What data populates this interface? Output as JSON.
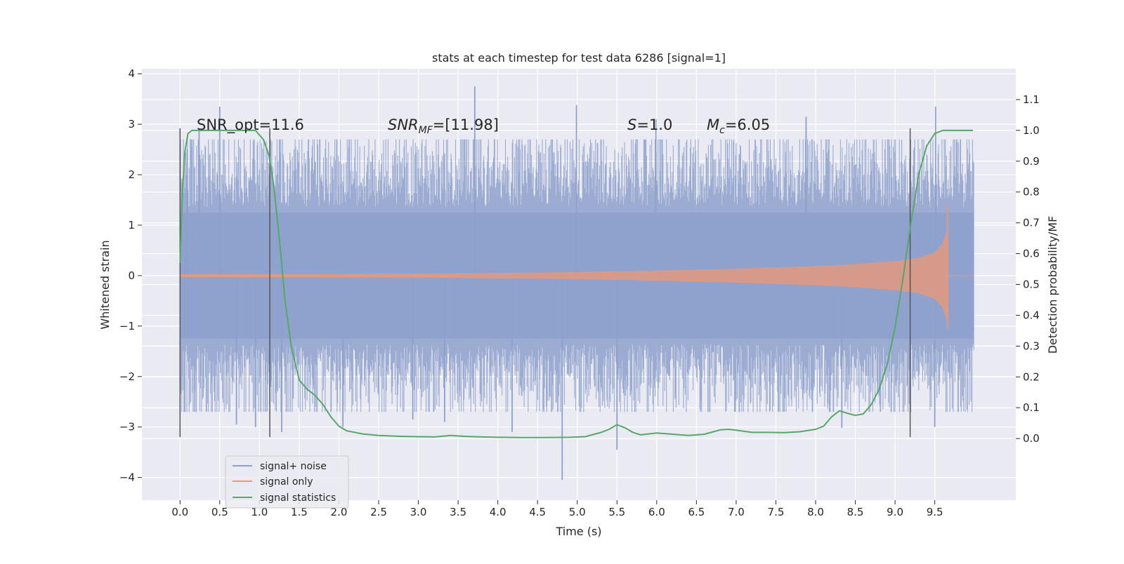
{
  "chart_data": {
    "type": "line",
    "title": "stats at each timestep for test data 6286 [signal=1]",
    "xlabel": "Time (s)",
    "ylabel": "Whitened strain",
    "ylabel_right": "Detection probability/MF",
    "xlim": [
      -0.48,
      10.52
    ],
    "ylim": [
      -4.45,
      4.1
    ],
    "ylim_right": [
      -0.2,
      1.2
    ],
    "grid": true,
    "x_ticks": [
      "0.0",
      "0.5",
      "1.0",
      "1.5",
      "2.0",
      "2.5",
      "3.0",
      "3.5",
      "4.0",
      "4.5",
      "5.0",
      "5.5",
      "6.0",
      "6.5",
      "7.0",
      "7.5",
      "8.0",
      "8.5",
      "9.0",
      "9.5"
    ],
    "y_ticks": [
      "4",
      "3",
      "2",
      "1",
      "0",
      "−1",
      "−2",
      "−3",
      "−4"
    ],
    "y_right_ticks": [
      "1.1",
      "1.0",
      "0.9",
      "0.8",
      "0.7",
      "0.6",
      "0.5",
      "0.4",
      "0.3",
      "0.2",
      "0.1",
      "0.0"
    ],
    "annotations": {
      "snr_opt": "SNR_opt=11.6",
      "snr_mf_main": "SNR",
      "snr_mf_sub": "MF",
      "snr_mf_value": "=[11.98]",
      "s_symbol": "S",
      "s_value": "=1.0",
      "mc_symbol": "M",
      "mc_sub": "c",
      "mc_value": "=6.05"
    },
    "vertical_markers_x": [
      0.0,
      1.13,
      9.19
    ],
    "legend": {
      "position": "lower-left",
      "entries": [
        "signal+ noise",
        "signal only",
        "signal statistics"
      ]
    },
    "series": [
      {
        "name": "signal+ noise",
        "color": "#8da0cb",
        "t_range": [
          0.0,
          9.99
        ],
        "envelope_typical": 1.6,
        "peaks": [
          {
            "x": 0.09,
            "y": 2.5
          },
          {
            "x": 0.24,
            "y": 2.9
          },
          {
            "x": 0.5,
            "y": 3.35
          },
          {
            "x": 0.71,
            "y": -2.95
          },
          {
            "x": 0.95,
            "y": -3.0
          },
          {
            "x": 1.28,
            "y": -3.1
          },
          {
            "x": 2.05,
            "y": -3.0
          },
          {
            "x": 2.93,
            "y": -2.85
          },
          {
            "x": 3.71,
            "y": 3.75
          },
          {
            "x": 3.33,
            "y": -2.9
          },
          {
            "x": 4.18,
            "y": -3.1
          },
          {
            "x": 4.81,
            "y": -4.05
          },
          {
            "x": 4.99,
            "y": 3.38
          },
          {
            "x": 5.5,
            "y": -3.45
          },
          {
            "x": 5.99,
            "y": 3.1
          },
          {
            "x": 7.88,
            "y": 3.15
          },
          {
            "x": 8.33,
            "y": -3.02
          },
          {
            "x": 9.51,
            "y": 3.35
          },
          {
            "x": 9.5,
            "y": -3.0
          }
        ]
      },
      {
        "name": "signal only",
        "color": "#e5997b",
        "envelope": [
          {
            "x": 0.0,
            "y": 0.02
          },
          {
            "x": 3.0,
            "y": 0.03
          },
          {
            "x": 5.0,
            "y": 0.06
          },
          {
            "x": 6.0,
            "y": 0.09
          },
          {
            "x": 7.0,
            "y": 0.13
          },
          {
            "x": 8.0,
            "y": 0.18
          },
          {
            "x": 8.5,
            "y": 0.22
          },
          {
            "x": 9.0,
            "y": 0.28
          },
          {
            "x": 9.3,
            "y": 0.34
          },
          {
            "x": 9.5,
            "y": 0.45
          },
          {
            "x": 9.6,
            "y": 0.62
          },
          {
            "x": 9.65,
            "y": 0.85
          }
        ],
        "peak_max": 1.4,
        "peak_min": -1.05,
        "end_x": 9.66
      },
      {
        "name": "signal statistics",
        "color": "#55a868",
        "axis": "right",
        "x": [
          0.0,
          0.03,
          0.06,
          0.1,
          0.15,
          0.25,
          0.4,
          0.6,
          0.8,
          0.95,
          1.05,
          1.12,
          1.18,
          1.25,
          1.32,
          1.4,
          1.5,
          1.6,
          1.7,
          1.8,
          1.9,
          2.0,
          2.1,
          2.3,
          2.5,
          2.8,
          3.0,
          3.2,
          3.4,
          3.6,
          3.8,
          4.0,
          4.3,
          4.6,
          4.9,
          5.1,
          5.3,
          5.4,
          5.5,
          5.6,
          5.7,
          5.8,
          6.0,
          6.2,
          6.4,
          6.6,
          6.8,
          6.9,
          7.0,
          7.2,
          7.4,
          7.6,
          7.8,
          8.0,
          8.1,
          8.2,
          8.3,
          8.4,
          8.5,
          8.6,
          8.7,
          8.8,
          8.9,
          9.0,
          9.1,
          9.2,
          9.3,
          9.4,
          9.5,
          9.6,
          9.8,
          9.98
        ],
        "values": [
          0.57,
          0.8,
          0.93,
          0.99,
          1.0,
          1.0,
          1.0,
          1.0,
          1.0,
          1.0,
          0.97,
          0.92,
          0.82,
          0.65,
          0.45,
          0.3,
          0.19,
          0.16,
          0.14,
          0.11,
          0.07,
          0.04,
          0.025,
          0.015,
          0.01,
          0.007,
          0.006,
          0.005,
          0.01,
          0.007,
          0.005,
          0.004,
          0.003,
          0.003,
          0.004,
          0.006,
          0.02,
          0.03,
          0.045,
          0.035,
          0.02,
          0.012,
          0.018,
          0.014,
          0.01,
          0.014,
          0.028,
          0.03,
          0.027,
          0.02,
          0.02,
          0.019,
          0.022,
          0.03,
          0.04,
          0.07,
          0.09,
          0.082,
          0.075,
          0.08,
          0.11,
          0.16,
          0.24,
          0.36,
          0.52,
          0.7,
          0.86,
          0.95,
          0.99,
          1.0,
          1.0,
          1.0
        ]
      }
    ]
  }
}
